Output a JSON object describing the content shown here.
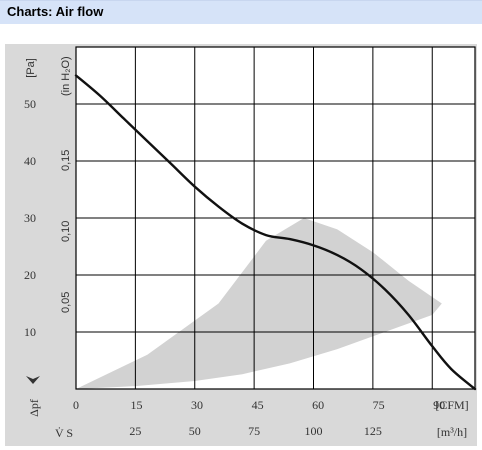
{
  "header": {
    "title": "Charts: Air flow"
  },
  "chart_data": {
    "type": "line",
    "y_unit_pa": "[Pa]",
    "y_unit_inh2o": "(in H₂O)",
    "y_symbol": "Δpf",
    "x_unit_cfm": "[CFM]",
    "x_unit_m3h": "[m³/h]",
    "x_symbol": "V̇ S",
    "pa_ticks": [
      "10",
      "20",
      "30",
      "40",
      "50"
    ],
    "pa_tick_values": [
      10,
      20,
      30,
      40,
      50
    ],
    "inh2o_ticks": [
      "0,05",
      "0,10",
      "0,15"
    ],
    "inh2o_tick_values": [
      0.05,
      0.1,
      0.15
    ],
    "cfm_ticks": [
      "0",
      "15",
      "30",
      "45",
      "60",
      "75",
      "90"
    ],
    "cfm_tick_values": [
      0,
      15,
      30,
      45,
      60,
      75,
      90
    ],
    "m3h_ticks": [
      "25",
      "50",
      "75",
      "100",
      "125"
    ],
    "m3h_tick_values": [
      25,
      50,
      75,
      100,
      125
    ],
    "xlim_m3h": [
      0,
      168
    ],
    "ylim_pa": [
      0,
      60
    ],
    "grid": true,
    "series": [
      {
        "x": [
          0,
          10,
          20,
          30,
          40,
          50,
          60,
          70,
          80,
          90,
          100,
          110,
          120,
          130,
          140,
          150,
          158,
          168
        ],
        "y": [
          55,
          51.5,
          47.5,
          43.5,
          39.5,
          35.5,
          32,
          29,
          27,
          26.3,
          25.2,
          23.5,
          21,
          17.5,
          13,
          7.5,
          3.5,
          0
        ]
      }
    ],
    "operating_region": {
      "x": [
        0,
        30,
        60,
        80,
        96,
        110,
        125,
        140,
        154,
        150,
        130,
        110,
        90,
        70,
        50,
        25,
        0
      ],
      "y": [
        0,
        6,
        15,
        26,
        30,
        28,
        24,
        19,
        15,
        13,
        10,
        7,
        4.5,
        2.6,
        1.4,
        0.5,
        0
      ]
    }
  }
}
